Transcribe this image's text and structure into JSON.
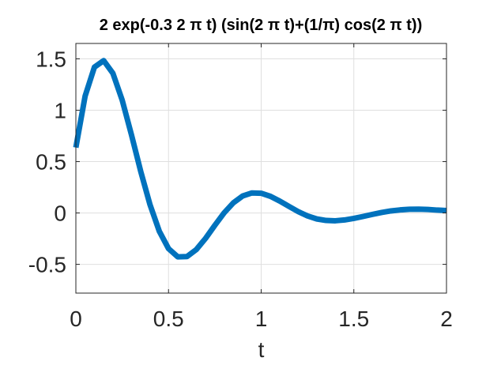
{
  "chart_data": {
    "type": "line",
    "title": "2 exp(-0.3 2 π t) (sin(2 π t)+(1/π) cos(2 π t))",
    "xlabel": "t",
    "ylabel": "",
    "xlim": [
      0,
      2
    ],
    "ylim": [
      -0.78,
      1.65
    ],
    "xticks": [
      0,
      0.5,
      1,
      1.5,
      2
    ],
    "xtick_labels": [
      "0",
      "0.5",
      "1",
      "1.5",
      "2"
    ],
    "yticks": [
      -0.5,
      0,
      0.5,
      1,
      1.5
    ],
    "ytick_labels": [
      "-0.5",
      "0",
      "0.5",
      "1",
      "1.5"
    ],
    "grid": true,
    "series_color": "#0072bd",
    "series": [
      {
        "x": [
          0,
          0.05,
          0.1,
          0.15,
          0.2,
          0.25,
          0.3,
          0.35,
          0.4,
          0.45,
          0.5,
          0.55,
          0.6,
          0.65,
          0.7,
          0.75,
          0.8,
          0.85,
          0.9,
          0.95,
          1.0,
          1.05,
          1.1,
          1.15,
          1.2,
          1.25,
          1.3,
          1.35,
          1.4,
          1.45,
          1.5,
          1.55,
          1.6,
          1.65,
          1.7,
          1.75,
          1.8,
          1.85,
          1.9,
          1.95,
          2.0
        ],
        "y": [
          0.637,
          1.138,
          1.419,
          1.483,
          1.359,
          1.098,
          0.761,
          0.405,
          0.081,
          -0.177,
          -0.347,
          -0.427,
          -0.424,
          -0.356,
          -0.247,
          -0.12,
          0.001,
          0.099,
          0.165,
          0.195,
          0.192,
          0.162,
          0.116,
          0.064,
          0.013,
          -0.029,
          -0.058,
          -0.073,
          -0.076,
          -0.068,
          -0.053,
          -0.034,
          -0.014,
          0.005,
          0.02,
          0.03,
          0.036,
          0.037,
          0.034,
          0.028,
          0.024
        ]
      }
    ]
  }
}
